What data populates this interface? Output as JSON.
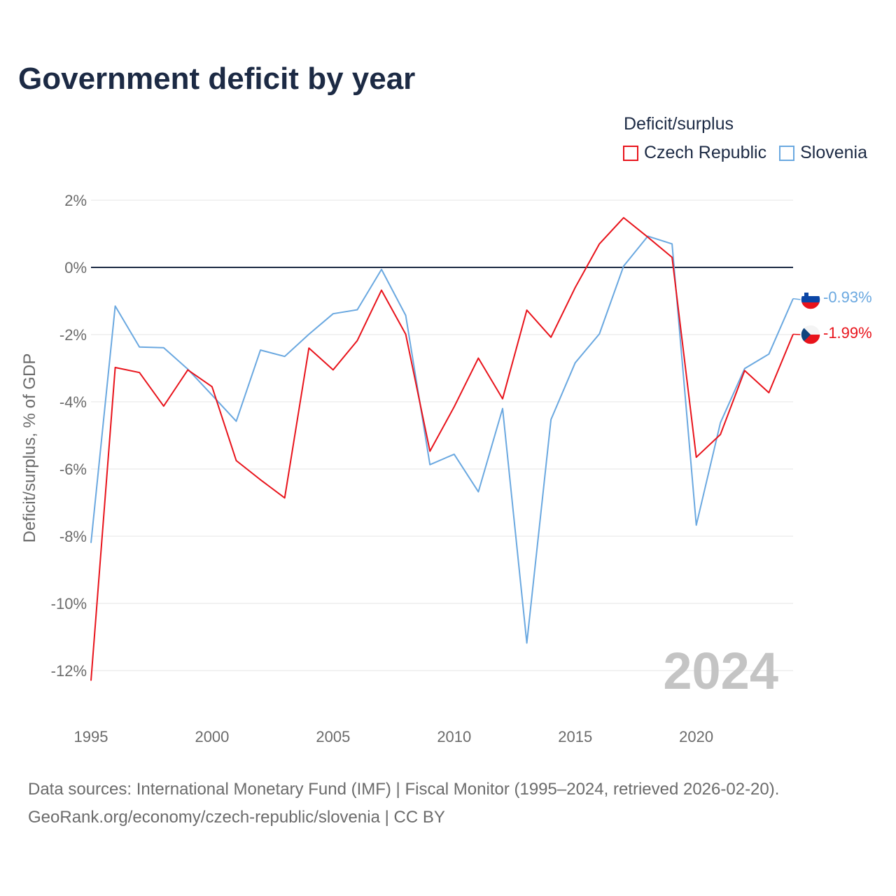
{
  "title": "Government deficit by year",
  "legend": {
    "title": "Deficit/surplus",
    "items": [
      {
        "name": "Czech Republic",
        "color": "#e8131b"
      },
      {
        "name": "Slovenia",
        "color": "#6aa8e0"
      }
    ]
  },
  "watermark_year": "2024",
  "source_line1": "Data sources: International Monetary Fund (IMF) | Fiscal Monitor (1995–2024, retrieved 2026-02-20).",
  "source_line2": "GeoRank.org/economy/czech-republic/slovenia | CC BY",
  "chart_data": {
    "type": "line",
    "title": "Government deficit by year",
    "ylabel": "Deficit/surplus, % of GDP",
    "xlabel": "",
    "xlim": [
      1995,
      2024
    ],
    "ylim": [
      -12,
      2
    ],
    "grid": true,
    "zero_line": true,
    "legend_position": "top-right",
    "x_ticks": [
      1995,
      2000,
      2005,
      2010,
      2015,
      2020
    ],
    "x_tick_labels": [
      "1995",
      "2000",
      "2005",
      "2010",
      "2015",
      "2020"
    ],
    "y_ticks": [
      2,
      0,
      -2,
      -4,
      -6,
      -8,
      -10,
      -12
    ],
    "y_tick_labels": [
      "2%",
      "0%",
      "-2%",
      "-4%",
      "-6%",
      "-8%",
      "-10%",
      "-12%"
    ],
    "x": [
      1995,
      1996,
      1997,
      1998,
      1999,
      2000,
      2001,
      2002,
      2003,
      2004,
      2005,
      2006,
      2007,
      2008,
      2009,
      2010,
      2011,
      2012,
      2013,
      2014,
      2015,
      2016,
      2017,
      2018,
      2019,
      2020,
      2021,
      2022,
      2023,
      2024
    ],
    "series": [
      {
        "name": "Czech Republic",
        "color": "#e8131b",
        "end_label": "-1.99%",
        "values": [
          -12.3,
          -2.98,
          -3.13,
          -4.13,
          -3.05,
          -3.55,
          -5.75,
          -6.32,
          -6.86,
          -2.4,
          -3.05,
          -2.18,
          -0.68,
          -1.99,
          -5.47,
          -4.15,
          -2.7,
          -3.91,
          -1.27,
          -2.08,
          -0.6,
          0.7,
          1.48,
          0.9,
          0.3,
          -5.65,
          -4.97,
          -3.07,
          -3.73,
          -1.99
        ]
      },
      {
        "name": "Slovenia",
        "color": "#6aa8e0",
        "end_label": "-0.93%",
        "values": [
          -8.2,
          -1.15,
          -2.37,
          -2.39,
          -3.03,
          -3.8,
          -4.58,
          -2.46,
          -2.65,
          -1.99,
          -1.38,
          -1.26,
          -0.06,
          -1.43,
          -5.87,
          -5.56,
          -6.68,
          -4.2,
          -11.18,
          -4.53,
          -2.84,
          -1.98,
          0.04,
          0.93,
          0.7,
          -7.67,
          -4.62,
          -3.01,
          -2.58,
          -0.93
        ]
      }
    ]
  }
}
